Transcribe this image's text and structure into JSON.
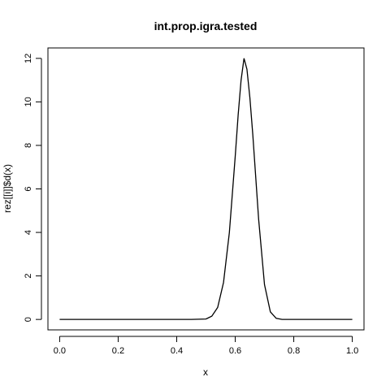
{
  "chart_data": {
    "type": "line",
    "title": "int.prop.igra.tested",
    "xlabel": "x",
    "ylabel": "rez[[i]]$d(x)",
    "xlim": [
      -0.04,
      1.04
    ],
    "ylim": [
      -0.48,
      12.48
    ],
    "xticks": [
      0.0,
      0.2,
      0.4,
      0.6,
      0.8,
      1.0
    ],
    "xtick_labels": [
      "0.0",
      "0.2",
      "0.4",
      "0.6",
      "0.8",
      "1.0"
    ],
    "yticks": [
      0,
      2,
      4,
      6,
      8,
      10,
      12
    ],
    "ytick_labels": [
      "0",
      "2",
      "4",
      "6",
      "8",
      "10",
      "12"
    ],
    "grid": false,
    "legend": "none",
    "line_color": "#000000",
    "series": [
      {
        "x": [
          0.0,
          0.05,
          0.1,
          0.15,
          0.2,
          0.25,
          0.3,
          0.35,
          0.4,
          0.45,
          0.5,
          0.52,
          0.54,
          0.56,
          0.58,
          0.6,
          0.61,
          0.62,
          0.63,
          0.64,
          0.65,
          0.66,
          0.68,
          0.7,
          0.72,
          0.74,
          0.76,
          0.8,
          0.85,
          0.9,
          0.95,
          1.0
        ],
        "y": [
          0,
          0,
          0,
          0,
          0,
          0,
          0,
          0,
          0,
          0,
          0.02,
          0.15,
          0.55,
          1.7,
          4.0,
          7.5,
          9.4,
          11.0,
          12.0,
          11.5,
          10.2,
          8.5,
          4.6,
          1.6,
          0.35,
          0.05,
          0,
          0,
          0,
          0,
          0,
          0
        ]
      }
    ]
  }
}
